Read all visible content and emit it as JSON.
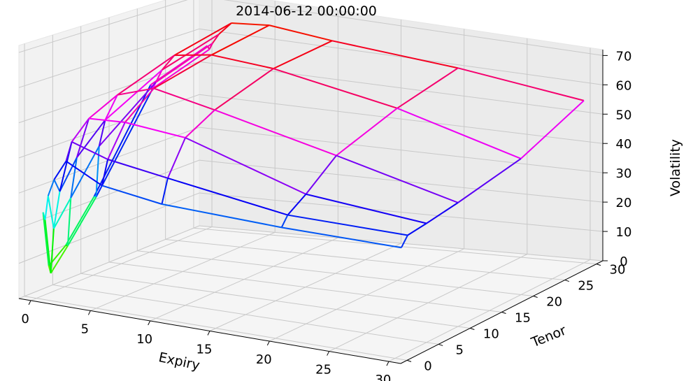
{
  "chart_data": {
    "type": "wireframe-3d",
    "title": "2014-06-12 00:00:00",
    "xlabel": "Expiry",
    "ylabel": "Tenor",
    "zlabel": "Volatility",
    "xlim": [
      -1,
      31
    ],
    "ylim": [
      -1,
      31
    ],
    "zlim": [
      0,
      72
    ],
    "x_ticks": [
      0,
      5,
      10,
      15,
      20,
      25,
      30
    ],
    "y_ticks": [
      0,
      5,
      10,
      15,
      20,
      25,
      30
    ],
    "z_ticks": [
      0,
      10,
      20,
      30,
      40,
      50,
      60,
      70
    ],
    "grid": true,
    "expiry": [
      0.08,
      0.25,
      0.5,
      1,
      2,
      5,
      10,
      20,
      30
    ],
    "tenor": [
      1,
      2,
      5,
      10,
      20,
      30
    ],
    "volatility": [
      [
        24,
        8,
        12,
        23,
        50,
        56
      ],
      [
        22,
        6,
        12,
        23,
        49,
        55
      ],
      [
        29,
        19,
        26,
        38,
        51,
        57
      ],
      [
        34,
        30,
        38,
        46,
        55,
        60
      ],
      [
        40,
        45,
        50,
        54,
        60,
        64
      ],
      [
        35,
        42,
        51,
        58,
        62,
        65
      ],
      [
        33,
        40,
        50,
        55,
        61,
        63
      ],
      [
        33,
        36,
        40,
        48,
        55,
        60
      ],
      [
        34,
        37,
        38,
        40,
        45,
        55
      ]
    ]
  }
}
